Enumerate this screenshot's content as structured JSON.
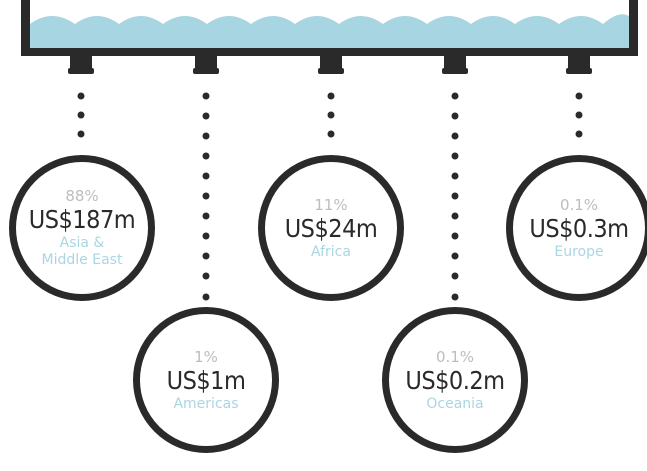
{
  "colors": {
    "water": "#a8d5e2",
    "pipe": "#2a2a2a",
    "percent_text": "#bdbdbd",
    "amount_text": "#2a2a2a",
    "region_text": "#a9d6e3"
  },
  "regions": [
    {
      "percent": "88%",
      "amount": "US$187m",
      "region": "Asia &\nMiddle East"
    },
    {
      "percent": "1%",
      "amount": "US$1m",
      "region": "Americas"
    },
    {
      "percent": "11%",
      "amount": "US$24m",
      "region": "Africa"
    },
    {
      "percent": "0.1%",
      "amount": "US$0.2m",
      "region": "Oceania"
    },
    {
      "percent": "0.1%",
      "amount": "US$0.3m",
      "region": "Europe"
    }
  ]
}
